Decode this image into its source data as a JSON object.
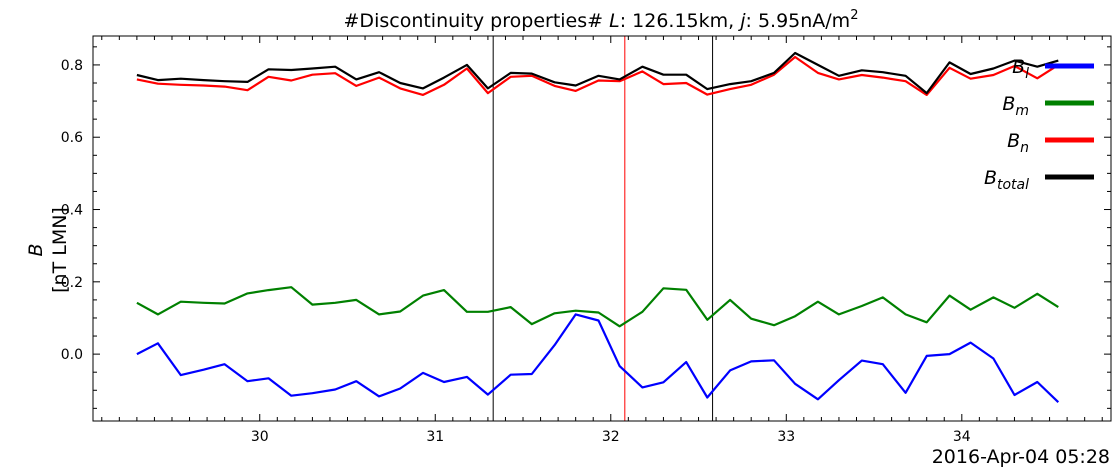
{
  "chart_data": {
    "type": "line",
    "title_plain": "#Discontinuity properties# ",
    "title_L_symbol": "L",
    "title_L_value": ": 126.15km, ",
    "title_j_symbol": "j",
    "title_j_value": ": 5.95nA/m",
    "title_j_exponent": "2",
    "ylabel_symbol": "B",
    "ylabel_units": "[nT LMN]",
    "xlabel": "2016-Apr-04 05:28",
    "xlim": [
      29.05,
      34.85
    ],
    "ylim": [
      -0.185,
      0.88
    ],
    "xticks": [
      30,
      31,
      32,
      33,
      34
    ],
    "xtick_labels": [
      "30",
      "31",
      "32",
      "33",
      "34"
    ],
    "yticks": [
      0.0,
      0.2,
      0.4,
      0.6,
      0.8
    ],
    "ytick_labels": [
      "0.0",
      "0.2",
      "0.4",
      "0.6",
      "0.8"
    ],
    "x": [
      29.3,
      29.42,
      29.55,
      29.68,
      29.8,
      29.93,
      30.05,
      30.18,
      30.3,
      30.43,
      30.55,
      30.68,
      30.8,
      30.93,
      31.05,
      31.18,
      31.3,
      31.43,
      31.55,
      31.68,
      31.8,
      31.93,
      32.05,
      32.18,
      32.3,
      32.43,
      32.55,
      32.68,
      32.8,
      32.93,
      33.05,
      33.18,
      33.3,
      33.43,
      33.55,
      33.68,
      33.8,
      33.93,
      34.05,
      34.18,
      34.3,
      34.43,
      34.55
    ],
    "series": [
      {
        "name_base": "B",
        "name_sub": "l",
        "color": "#0000ff",
        "values": [
          0.0,
          0.03,
          -0.058,
          -0.043,
          -0.028,
          -0.075,
          -0.067,
          -0.115,
          -0.108,
          -0.098,
          -0.075,
          -0.117,
          -0.095,
          -0.052,
          -0.077,
          -0.063,
          -0.112,
          -0.057,
          -0.055,
          0.025,
          0.11,
          0.093,
          -0.033,
          -0.092,
          -0.078,
          -0.022,
          -0.12,
          -0.045,
          -0.02,
          -0.017,
          -0.082,
          -0.125,
          -0.072,
          -0.018,
          -0.028,
          -0.107,
          -0.005,
          0.0,
          0.032,
          -0.012,
          -0.113,
          -0.077,
          -0.133
        ]
      },
      {
        "name_base": "B",
        "name_sub": "m",
        "color": "#008000",
        "values": [
          0.142,
          0.11,
          0.145,
          0.142,
          0.14,
          0.168,
          0.177,
          0.185,
          0.137,
          0.142,
          0.15,
          0.11,
          0.118,
          0.162,
          0.177,
          0.117,
          0.117,
          0.13,
          0.083,
          0.113,
          0.12,
          0.115,
          0.077,
          0.117,
          0.182,
          0.178,
          0.095,
          0.15,
          0.098,
          0.08,
          0.105,
          0.145,
          0.11,
          0.133,
          0.157,
          0.11,
          0.088,
          0.162,
          0.123,
          0.157,
          0.128,
          0.167,
          0.13
        ]
      },
      {
        "name_base": "B",
        "name_sub": "n",
        "color": "#ff0000",
        "values": [
          0.76,
          0.748,
          0.745,
          0.743,
          0.74,
          0.73,
          0.767,
          0.757,
          0.773,
          0.777,
          0.742,
          0.765,
          0.735,
          0.717,
          0.745,
          0.79,
          0.722,
          0.767,
          0.77,
          0.742,
          0.728,
          0.757,
          0.755,
          0.782,
          0.747,
          0.75,
          0.718,
          0.733,
          0.745,
          0.773,
          0.822,
          0.778,
          0.76,
          0.772,
          0.765,
          0.755,
          0.717,
          0.792,
          0.762,
          0.772,
          0.797,
          0.763,
          0.8
        ]
      },
      {
        "name_base": "B",
        "name_sub": "total",
        "color": "#000000",
        "values": [
          0.772,
          0.758,
          0.762,
          0.758,
          0.755,
          0.753,
          0.788,
          0.786,
          0.79,
          0.795,
          0.76,
          0.78,
          0.75,
          0.735,
          0.765,
          0.8,
          0.735,
          0.778,
          0.776,
          0.752,
          0.743,
          0.77,
          0.76,
          0.795,
          0.773,
          0.773,
          0.733,
          0.747,
          0.755,
          0.778,
          0.833,
          0.8,
          0.77,
          0.785,
          0.78,
          0.77,
          0.722,
          0.807,
          0.775,
          0.79,
          0.812,
          0.795,
          0.812
        ]
      }
    ],
    "vlines": [
      {
        "x": 31.33,
        "color": "#000000"
      },
      {
        "x": 32.08,
        "color": "#ff0000"
      },
      {
        "x": 32.58,
        "color": "#000000"
      }
    ],
    "legend_placement": "top-right",
    "grid": false
  }
}
